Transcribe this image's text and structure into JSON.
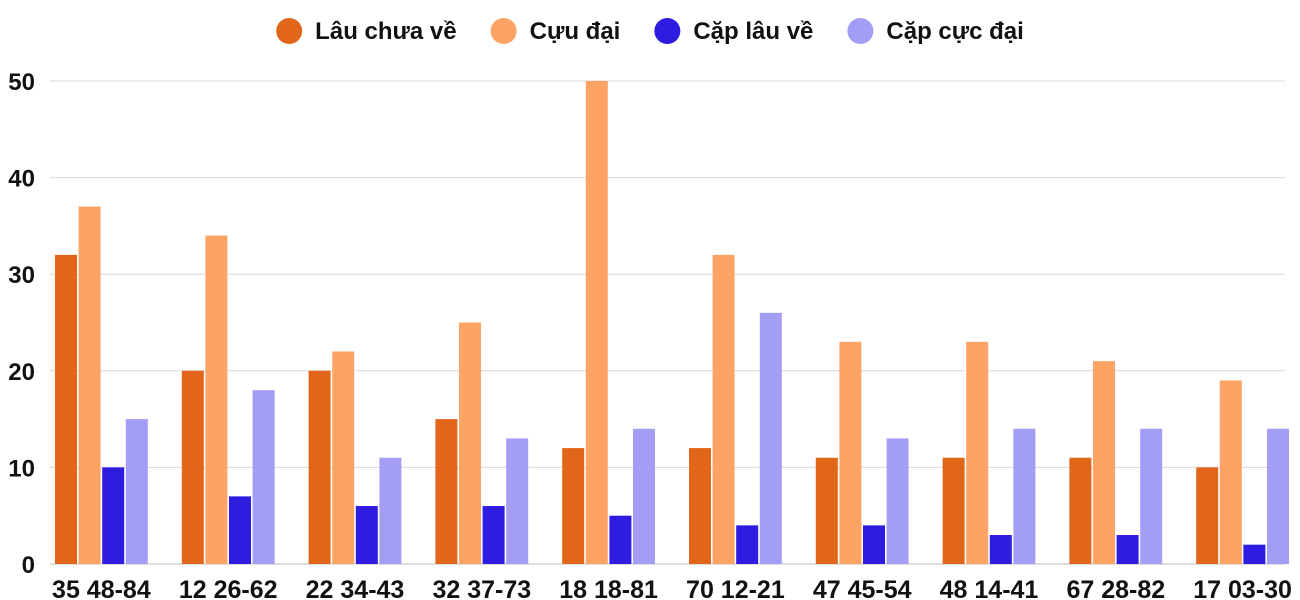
{
  "chart_data": {
    "type": "bar",
    "title": "",
    "xlabel": "",
    "ylabel": "",
    "categories": [
      "35 48-84",
      "12 26-62",
      "22 34-43",
      "32 37-73",
      "18 18-81",
      "70 12-21",
      "47 45-54",
      "48 14-41",
      "67 28-82",
      "17 03-30"
    ],
    "series": [
      {
        "name": "Lâu chưa về",
        "color": "#e2661a",
        "values": [
          32,
          20,
          20,
          15,
          12,
          12,
          11,
          11,
          11,
          10
        ]
      },
      {
        "name": "Cựu đại",
        "color": "#fda464",
        "values": [
          37,
          34,
          22,
          25,
          50,
          32,
          23,
          23,
          21,
          19
        ]
      },
      {
        "name": "Cặp lâu về",
        "color": "#2e1ce0",
        "values": [
          10,
          7,
          6,
          6,
          5,
          4,
          4,
          3,
          3,
          2
        ]
      },
      {
        "name": "Cặp cực đại",
        "color": "#a49df6",
        "values": [
          15,
          18,
          11,
          13,
          14,
          26,
          13,
          14,
          14,
          14
        ]
      }
    ],
    "ylim": [
      0,
      50
    ],
    "yticks": [
      0,
      10,
      20,
      30,
      40,
      50
    ],
    "grid": true,
    "legend_position": "top-center"
  }
}
